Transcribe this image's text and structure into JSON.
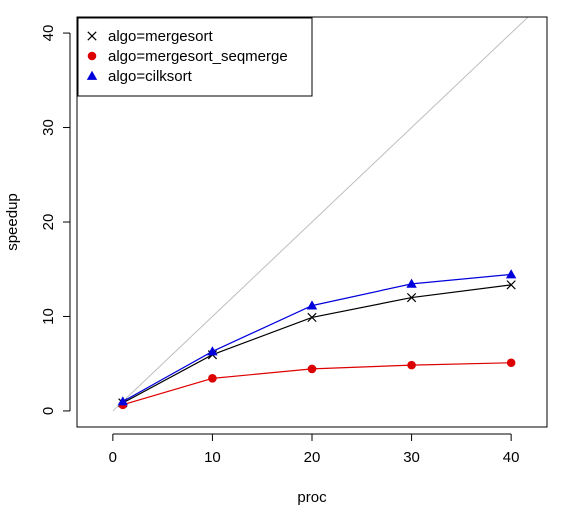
{
  "chart_data": {
    "type": "line",
    "title": "",
    "xlabel": "proc",
    "ylabel": "speedup",
    "xlim": [
      -3.6,
      43.6
    ],
    "ylim": [
      -1.7,
      41.7
    ],
    "xticks": [
      0,
      10,
      20,
      30,
      40
    ],
    "yticks": [
      0,
      10,
      20,
      30,
      40
    ],
    "grid": false,
    "legend_position": "top-left",
    "reference_line": {
      "from": [
        0,
        0
      ],
      "to": [
        43.6,
        43.6
      ],
      "color": "#bebebe"
    },
    "x": [
      1,
      10,
      20,
      30,
      40
    ],
    "series": [
      {
        "name": "algo=mergesort",
        "values": [
          0.85,
          5.95,
          9.9,
          12.0,
          13.35
        ],
        "color": "#000000",
        "marker": "cross"
      },
      {
        "name": "algo=mergesort_seqmerge",
        "values": [
          0.65,
          3.45,
          4.45,
          4.85,
          5.1
        ],
        "color": "#dd0000",
        "marker": "circle"
      },
      {
        "name": "algo=cilksort",
        "values": [
          1.0,
          6.3,
          11.15,
          13.45,
          14.45
        ],
        "color": "#0000dd",
        "marker": "triangle"
      }
    ]
  }
}
